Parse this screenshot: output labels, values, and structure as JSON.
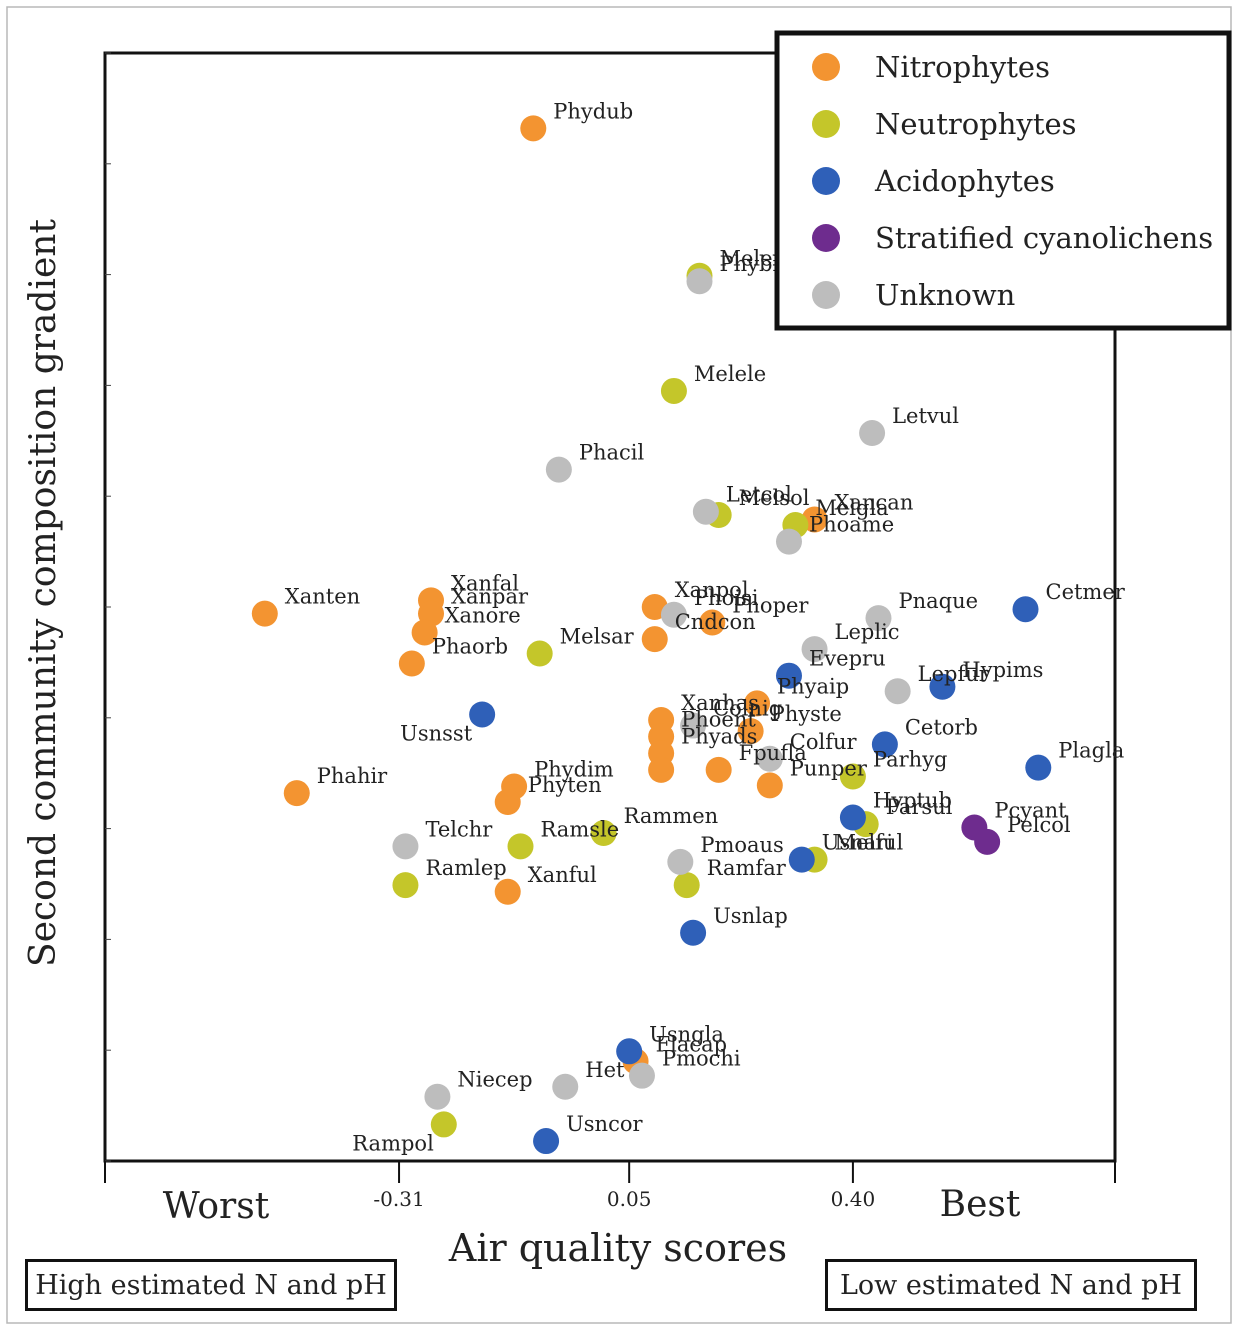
{
  "chart_data": {
    "type": "scatter",
    "title": "",
    "xlabel": "Air quality scores",
    "ylabel": "Second community composition gradient",
    "x_end_labels": {
      "left": "Worst",
      "right": "Best"
    },
    "x_ticks": [
      {
        "value": -0.31,
        "label": "-0.31"
      },
      {
        "value": 0.05,
        "label": "0.05"
      },
      {
        "value": 0.4,
        "label": "0.40"
      }
    ],
    "xlim": [
      -0.77,
      0.81
    ],
    "ylim": [
      0,
      100
    ],
    "grid": false,
    "legend_position": "top-right",
    "series": [
      {
        "name": "Nitrophytes",
        "color": "#F39431",
        "points": [
          {
            "label": "Phydub",
            "x": -0.1,
            "y": 93.2
          },
          {
            "label": "Xanten",
            "x": -0.52,
            "y": 49.4
          },
          {
            "label": "Xanfal",
            "x": -0.26,
            "y": 50.6
          },
          {
            "label": "Xanpar",
            "x": -0.26,
            "y": 49.4
          },
          {
            "label": "Xanore",
            "x": -0.27,
            "y": 47.7
          },
          {
            "label": "Phaorb",
            "x": -0.29,
            "y": 44.9
          },
          {
            "label": "Xanpol",
            "x": 0.09,
            "y": 50.0
          },
          {
            "label": "Phoper",
            "x": 0.18,
            "y": 48.6
          },
          {
            "label": "Cndcon",
            "x": 0.09,
            "y": 47.1
          },
          {
            "label": "Xanhas",
            "x": 0.1,
            "y": 39.8
          },
          {
            "label": "Phoent",
            "x": 0.1,
            "y": 38.3
          },
          {
            "label": "Phyads",
            "x": 0.1,
            "y": 36.8
          },
          {
            "label": "",
            "x": 0.1,
            "y": 35.3
          },
          {
            "label": "Phyaip",
            "x": 0.25,
            "y": 41.3
          },
          {
            "label": "Physte",
            "x": 0.24,
            "y": 38.8
          },
          {
            "label": "Fpufla",
            "x": 0.19,
            "y": 35.3
          },
          {
            "label": "Punper",
            "x": 0.27,
            "y": 33.9
          },
          {
            "label": "Phahir",
            "x": -0.47,
            "y": 33.2
          },
          {
            "label": "Phydim",
            "x": -0.13,
            "y": 33.8
          },
          {
            "label": "Phyten",
            "x": -0.14,
            "y": 32.4
          },
          {
            "label": "Xanful",
            "x": -0.14,
            "y": 24.3
          },
          {
            "label": "Xancan",
            "x": 0.34,
            "y": 57.9
          },
          {
            "label": "Flacap",
            "x": 0.06,
            "y": 9.0
          }
        ]
      },
      {
        "name": "Neutrophytes",
        "color": "#C4C62A",
        "points": [
          {
            "label": "Melexl",
            "x": 0.16,
            "y": 79.9
          },
          {
            "label": "Melele",
            "x": 0.12,
            "y": 69.5
          },
          {
            "label": "Melsol",
            "x": 0.19,
            "y": 58.3
          },
          {
            "label": "Melgla",
            "x": 0.31,
            "y": 57.4
          },
          {
            "label": "Melsar",
            "x": -0.09,
            "y": 45.8
          },
          {
            "label": "Parhyg",
            "x": 0.4,
            "y": 34.7
          },
          {
            "label": "Parsul",
            "x": 0.42,
            "y": 30.4
          },
          {
            "label": "Melful",
            "x": 0.34,
            "y": 27.2
          },
          {
            "label": "Rammen",
            "x": 0.01,
            "y": 29.6
          },
          {
            "label": "Ramsle",
            "x": -0.12,
            "y": 28.4
          },
          {
            "label": "Ramfar",
            "x": 0.14,
            "y": 24.9
          },
          {
            "label": "Ramlep",
            "x": -0.3,
            "y": 24.9
          },
          {
            "label": "Rampol",
            "x": -0.24,
            "y": 3.3
          }
        ]
      },
      {
        "name": "Acidophytes",
        "color": "#2F60B8",
        "points": [
          {
            "label": "Cetmer",
            "x": 0.67,
            "y": 49.8
          },
          {
            "label": "Evepru",
            "x": 0.3,
            "y": 43.8
          },
          {
            "label": "Hypims",
            "x": 0.54,
            "y": 42.8
          },
          {
            "label": "Usnsst",
            "x": -0.18,
            "y": 40.3
          },
          {
            "label": "Cetorb",
            "x": 0.45,
            "y": 37.6
          },
          {
            "label": "Plagla",
            "x": 0.69,
            "y": 35.5
          },
          {
            "label": "Hyptub",
            "x": 0.4,
            "y": 31.0
          },
          {
            "label": "Usnari",
            "x": 0.32,
            "y": 27.2
          },
          {
            "label": "Usnlap",
            "x": 0.15,
            "y": 20.6
          },
          {
            "label": "Usngla",
            "x": 0.05,
            "y": 9.9
          },
          {
            "label": "Usncor",
            "x": -0.08,
            "y": 1.8
          }
        ]
      },
      {
        "name": "Stratified cyanolichens",
        "color": "#6E2C8E",
        "points": [
          {
            "label": "Pcyant",
            "x": 0.59,
            "y": 30.1
          },
          {
            "label": "Pelcol",
            "x": 0.61,
            "y": 28.8
          }
        ]
      },
      {
        "name": "Unknown",
        "color": "#BDBDBD",
        "points": [
          {
            "label": "Phybiz",
            "x": 0.16,
            "y": 79.4
          },
          {
            "label": "Letvul",
            "x": 0.43,
            "y": 65.7
          },
          {
            "label": "Phacil",
            "x": -0.06,
            "y": 62.4
          },
          {
            "label": "Letcol",
            "x": 0.17,
            "y": 58.6
          },
          {
            "label": "Phoame",
            "x": 0.3,
            "y": 55.9
          },
          {
            "label": "Phoisi",
            "x": 0.12,
            "y": 49.3
          },
          {
            "label": "Pnaque",
            "x": 0.44,
            "y": 49.0
          },
          {
            "label": "Leplic",
            "x": 0.34,
            "y": 46.2
          },
          {
            "label": "Lepfur",
            "x": 0.47,
            "y": 42.4
          },
          {
            "label": "Colnig",
            "x": 0.15,
            "y": 39.3
          },
          {
            "label": "Colfur",
            "x": 0.27,
            "y": 36.3
          },
          {
            "label": "Telchr",
            "x": -0.3,
            "y": 28.4
          },
          {
            "label": "Pmoaus",
            "x": 0.13,
            "y": 27.0
          },
          {
            "label": "Pmochi",
            "x": 0.07,
            "y": 7.7
          },
          {
            "label": "Het",
            "x": -0.05,
            "y": 6.7
          },
          {
            "label": "Niecep",
            "x": -0.25,
            "y": 5.8
          }
        ]
      }
    ]
  },
  "annotations": {
    "left_box": "High estimated N and pH",
    "right_box": "Low estimated N and pH"
  }
}
